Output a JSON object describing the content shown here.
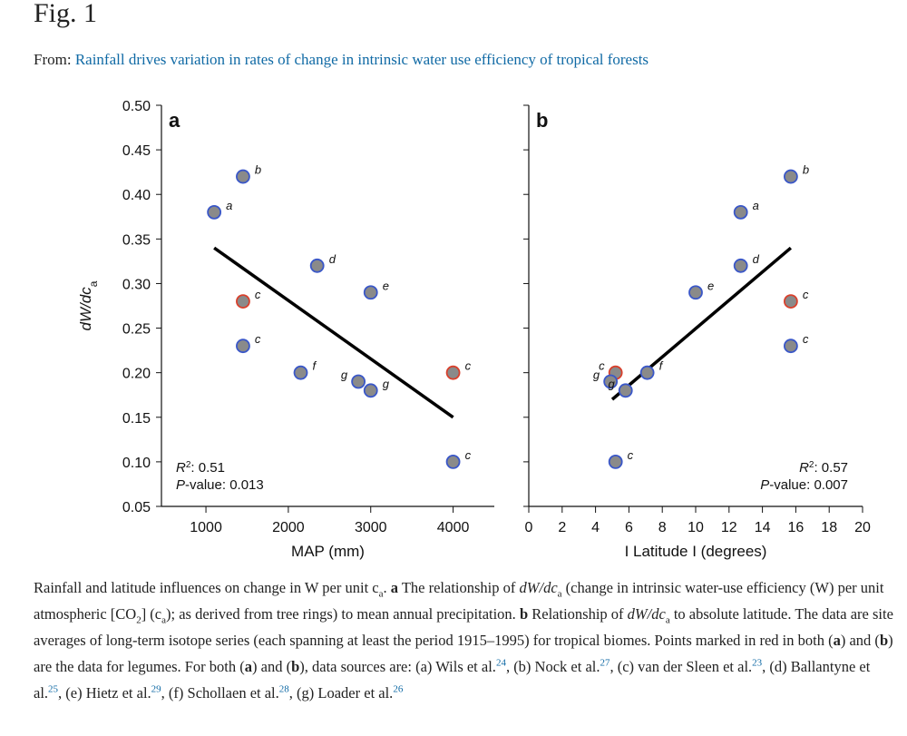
{
  "header": {
    "title": "Fig. 1",
    "from_label": "From:",
    "link": "Rainfall drives variation in rates of change in intrinsic water use efficiency of tropical forests"
  },
  "chart_data": [
    {
      "type": "scatter",
      "panel": "a",
      "x_label": "MAP (mm)",
      "y_label": "dW/dc",
      "y_label_subscript": "a",
      "xlim": [
        460,
        4500
      ],
      "xticks": [
        1000,
        2000,
        3000,
        4000
      ],
      "ylim": [
        0.05,
        0.5
      ],
      "yticks": [
        0.05,
        {
          "value": 0.1,
          "label": "0.10"
        },
        0.15,
        {
          "value": 0.2,
          "label": "0.20"
        },
        0.25,
        {
          "value": 0.3,
          "label": "0.30"
        },
        0.35,
        {
          "value": 0.4,
          "label": "0.40"
        },
        0.45,
        {
          "value": 0.5,
          "label": "0.50"
        }
      ],
      "ytick_labels": true,
      "x": [
        1100,
        1450,
        1450,
        1450,
        2350,
        3000,
        2150,
        2850,
        3000,
        4000,
        4000
      ],
      "values": [
        0.38,
        0.42,
        0.28,
        0.23,
        0.32,
        0.29,
        0.2,
        0.19,
        0.18,
        0.2,
        0.1
      ],
      "point_labels": [
        "a",
        "b",
        "c",
        "c",
        "d",
        "e",
        "f",
        "g",
        "g",
        "c",
        "c"
      ],
      "edge_colors": [
        "#3a57c8",
        "#3a57c8",
        "#d9402c",
        "#3a57c8",
        "#3a57c8",
        "#3a57c8",
        "#3a57c8",
        "#3a57c8",
        "#3a57c8",
        "#d9402c",
        "#3a57c8"
      ],
      "fill_color": "#8a8a8a",
      "fit_line": {
        "x": [
          1100,
          4000
        ],
        "y": [
          0.34,
          0.15
        ]
      },
      "annotation_corner": "bottom-left",
      "annotations": [
        [
          {
            "text": "R",
            "style": "italic"
          },
          {
            "text": "2",
            "style": "sup"
          },
          {
            "text": ": 0.51",
            "style": "plain"
          }
        ],
        [
          {
            "text": "P",
            "style": "italic"
          },
          {
            "text": "-value: 0.013",
            "style": "plain"
          }
        ]
      ]
    },
    {
      "type": "scatter",
      "panel": "b",
      "x_label": "I Latitude I (degrees)",
      "xlim": [
        0,
        20
      ],
      "xticks": [
        0,
        2,
        4,
        6,
        8,
        10,
        12,
        14,
        16,
        18,
        20
      ],
      "ylim": [
        0.05,
        0.5
      ],
      "yticks": [
        0.05,
        0.1,
        0.15,
        0.2,
        0.25,
        0.3,
        0.35,
        0.4,
        0.45,
        0.5
      ],
      "ytick_labels": false,
      "x": [
        15.7,
        12.7,
        12.7,
        10,
        15.7,
        15.7,
        5.2,
        7.1,
        4.9,
        5.8,
        5.2
      ],
      "values": [
        0.42,
        0.38,
        0.32,
        0.29,
        0.28,
        0.23,
        0.2,
        0.2,
        0.19,
        0.18,
        0.1
      ],
      "point_labels": [
        "b",
        "a",
        "d",
        "e",
        "c",
        "c",
        "c",
        "f",
        "g",
        "g",
        "c"
      ],
      "edge_colors": [
        "#3a57c8",
        "#3a57c8",
        "#3a57c8",
        "#3a57c8",
        "#d9402c",
        "#3a57c8",
        "#d9402c",
        "#3a57c8",
        "#3a57c8",
        "#3a57c8",
        "#3a57c8"
      ],
      "fill_color": "#8a8a8a",
      "fit_line": {
        "x": [
          5,
          15.7
        ],
        "y": [
          0.17,
          0.34
        ]
      },
      "annotation_corner": "bottom-right",
      "annotations": [
        [
          {
            "text": "R",
            "style": "italic"
          },
          {
            "text": "2",
            "style": "sup"
          },
          {
            "text": ": 0.57",
            "style": "plain"
          }
        ],
        [
          {
            "text": "P",
            "style": "italic"
          },
          {
            "text": "-value: 0.007",
            "style": "plain"
          }
        ]
      ]
    }
  ],
  "caption": [
    {
      "text": "Rainfall and latitude influences on change in W per unit c",
      "style": "plain"
    },
    {
      "text": "a",
      "style": "sub"
    },
    {
      "text": ". ",
      "style": "plain"
    },
    {
      "text": "a",
      "style": "bold"
    },
    {
      "text": " The relationship of ",
      "style": "plain"
    },
    {
      "text": "dW/dc",
      "style": "italic"
    },
    {
      "text": "a",
      "style": "sub"
    },
    {
      "text": " (change in intrinsic water-use efficiency (W) per unit atmospheric [CO",
      "style": "plain"
    },
    {
      "text": "2",
      "style": "sub"
    },
    {
      "text": "] (c",
      "style": "plain"
    },
    {
      "text": "a",
      "style": "sub"
    },
    {
      "text": "); as derived from tree rings) to mean annual precipitation. ",
      "style": "plain"
    },
    {
      "text": "b",
      "style": "bold"
    },
    {
      "text": " Relationship of ",
      "style": "plain"
    },
    {
      "text": "dW/dc",
      "style": "italic"
    },
    {
      "text": "a",
      "style": "sub"
    },
    {
      "text": " to absolute latitude. The data are site averages of long-term isotope series (each spanning at least the period 1915–1995) for tropical biomes. Points marked in red in both (",
      "style": "plain"
    },
    {
      "text": "a",
      "style": "bold"
    },
    {
      "text": ") and (",
      "style": "plain"
    },
    {
      "text": "b",
      "style": "bold"
    },
    {
      "text": ") are the data for legumes. For both (",
      "style": "plain"
    },
    {
      "text": "a",
      "style": "bold"
    },
    {
      "text": ") and (",
      "style": "plain"
    },
    {
      "text": "b",
      "style": "bold"
    },
    {
      "text": "), data sources are: (a) Wils et al.",
      "style": "plain"
    },
    {
      "text": "24",
      "style": "ref"
    },
    {
      "text": ", (b) Nock et al.",
      "style": "plain"
    },
    {
      "text": "27",
      "style": "ref"
    },
    {
      "text": ", (c) van der Sleen et al.",
      "style": "plain"
    },
    {
      "text": "23",
      "style": "ref"
    },
    {
      "text": ", (d) Ballantyne et al.",
      "style": "plain"
    },
    {
      "text": "25",
      "style": "ref"
    },
    {
      "text": ", (e) Hietz et al.",
      "style": "plain"
    },
    {
      "text": "29",
      "style": "ref"
    },
    {
      "text": ", (f) Schollaen et al.",
      "style": "plain"
    },
    {
      "text": "28",
      "style": "ref"
    },
    {
      "text": ", (g) Loader et al.",
      "style": "plain"
    },
    {
      "text": "26",
      "style": "ref"
    }
  ]
}
